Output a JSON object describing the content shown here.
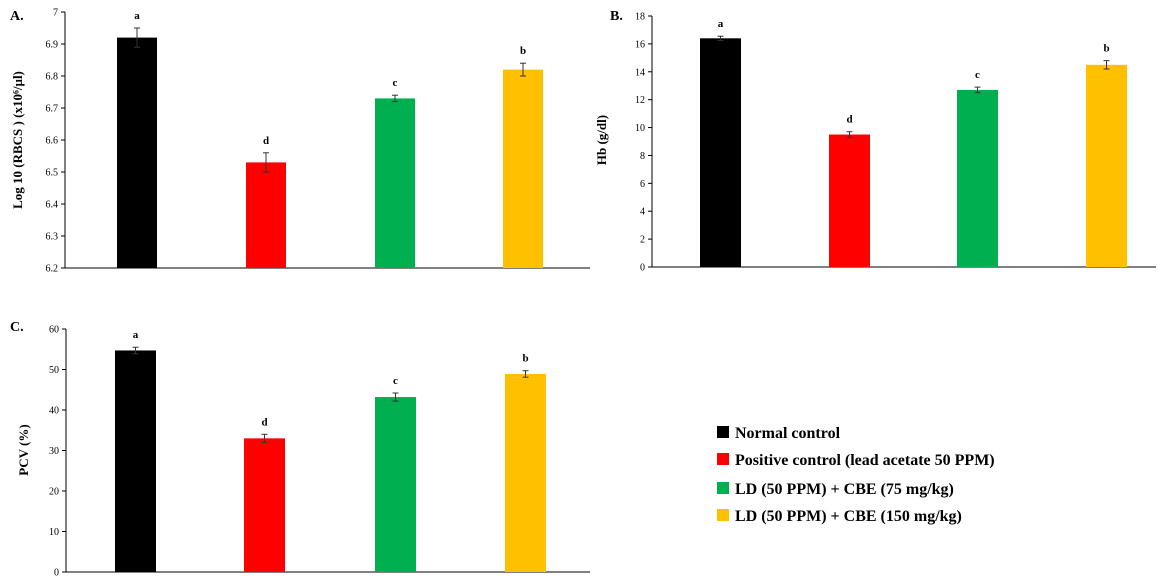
{
  "legend": {
    "entries": [
      {
        "label": "Normal control",
        "color": "#000000"
      },
      {
        "label": "Positive control (lead acetate 50 PPM)",
        "color": "#ff0000"
      },
      {
        "label": "LD (50 PPM) + CBE (75 mg/kg)",
        "color": "#00b050"
      },
      {
        "label": "LD (50 PPM) + CBE (150 mg/kg)",
        "color": "#ffc000"
      }
    ]
  },
  "chart_data": [
    {
      "type": "bar",
      "panel_label": "A.",
      "title": "",
      "xlabel": "",
      "ylabel": "Log 10 (RBCS ) (x10⁶/µl)",
      "ylim": [
        6.2,
        7.0
      ],
      "yticks": [
        "6.2",
        "6.3",
        "6.4",
        "6.5",
        "6.6",
        "6.7",
        "6.8",
        "6.9",
        "7"
      ],
      "grid": false,
      "values": [
        6.92,
        6.53,
        6.73,
        6.82
      ],
      "errors": [
        0.03,
        0.03,
        0.01,
        0.02
      ],
      "significance": [
        "a",
        "d",
        "c",
        "b"
      ],
      "colors": [
        "#000000",
        "#ff0000",
        "#00b050",
        "#ffc000"
      ]
    },
    {
      "type": "bar",
      "panel_label": "B.",
      "title": "",
      "xlabel": "",
      "ylabel": "Hb (g/dl)",
      "ylim": [
        0,
        18
      ],
      "yticks": [
        "0",
        "2",
        "4",
        "6",
        "8",
        "10",
        "12",
        "14",
        "16",
        "18"
      ],
      "grid": false,
      "values": [
        16.4,
        9.5,
        12.7,
        14.5
      ],
      "errors": [
        0.15,
        0.2,
        0.2,
        0.3
      ],
      "significance": [
        "a",
        "d",
        "c",
        "b"
      ],
      "colors": [
        "#000000",
        "#ff0000",
        "#00b050",
        "#ffc000"
      ]
    },
    {
      "type": "bar",
      "panel_label": "C.",
      "title": "",
      "xlabel": "",
      "ylabel": "PCV (%)",
      "ylim": [
        0,
        60
      ],
      "yticks": [
        "0",
        "10",
        "20",
        "30",
        "40",
        "50",
        "60"
      ],
      "grid": false,
      "values": [
        54.7,
        33.0,
        43.2,
        48.9
      ],
      "errors": [
        0.8,
        1.0,
        1.0,
        0.8
      ],
      "significance": [
        "a",
        "d",
        "c",
        "b"
      ],
      "colors": [
        "#000000",
        "#ff0000",
        "#00b050",
        "#ffc000"
      ]
    }
  ]
}
